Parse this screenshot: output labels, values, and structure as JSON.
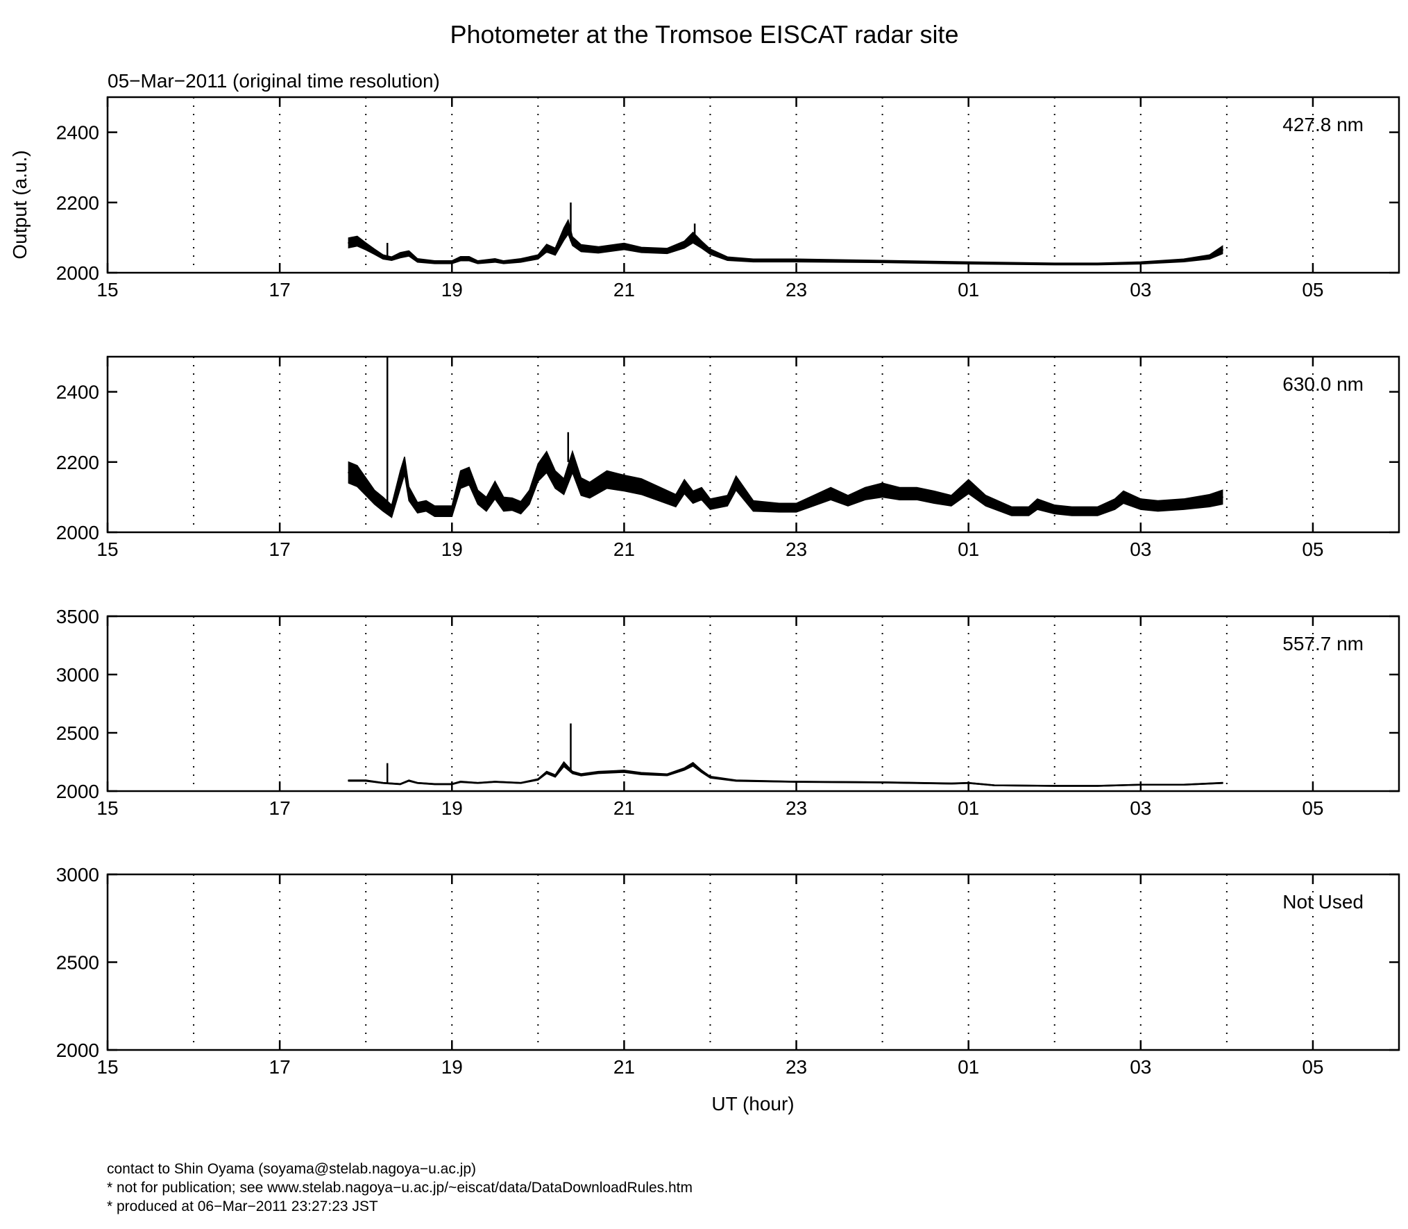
{
  "title": "Photometer at the Tromsoe EISCAT radar site",
  "subtitle": "05−Mar−2011 (original time resolution)",
  "ylabel": "Output (a.u.)",
  "xlabel": "UT (hour)",
  "footer": [
    "contact to Shin Oyama (soyama@stelab.nagoya−u.ac.jp)",
    "* not for publication; see www.stelab.nagoya−u.ac.jp/~eiscat/data/DataDownloadRules.htm",
    "* produced at 06−Mar−2011 23:27:23 JST"
  ],
  "chart_data": [
    {
      "type": "line",
      "label": "427.8 nm",
      "x_ticks": [
        "15",
        "17",
        "19",
        "21",
        "23",
        "01",
        "03",
        "05"
      ],
      "xlim": [
        15,
        30
      ],
      "ylim": [
        2000,
        2500
      ],
      "y_ticks": [
        2000,
        2200,
        2400
      ],
      "grid": "dotted vertical every hour",
      "x": [
        17.8,
        17.9,
        18.0,
        18.1,
        18.2,
        18.3,
        18.4,
        18.5,
        18.6,
        18.8,
        19.0,
        19.1,
        19.2,
        19.3,
        19.5,
        19.6,
        19.8,
        20.0,
        20.1,
        20.2,
        20.3,
        20.35,
        20.4,
        20.5,
        20.7,
        21.0,
        21.2,
        21.5,
        21.7,
        21.8,
        21.9,
        22.0,
        22.2,
        22.5,
        23.0,
        24.0,
        25.0,
        26.0,
        26.5,
        27.0,
        27.5,
        27.8,
        27.95
      ],
      "y": [
        2085,
        2090,
        2075,
        2060,
        2045,
        2040,
        2050,
        2055,
        2035,
        2030,
        2030,
        2040,
        2040,
        2030,
        2035,
        2030,
        2035,
        2045,
        2070,
        2060,
        2110,
        2130,
        2090,
        2070,
        2065,
        2075,
        2065,
        2062,
        2080,
        2100,
        2080,
        2060,
        2040,
        2035,
        2035,
        2032,
        2028,
        2025,
        2025,
        2028,
        2035,
        2045,
        2065
      ],
      "band": [
        28,
        28,
        20,
        15,
        12,
        10,
        15,
        15,
        10,
        8,
        8,
        12,
        12,
        8,
        10,
        8,
        10,
        12,
        22,
        20,
        35,
        40,
        25,
        20,
        18,
        18,
        15,
        15,
        20,
        30,
        20,
        15,
        10,
        8,
        8,
        6,
        6,
        5,
        5,
        6,
        8,
        12,
        22
      ],
      "spikes": [
        {
          "x": 18.25,
          "y": 2085
        },
        {
          "x": 20.38,
          "y": 2200
        },
        {
          "x": 21.82,
          "y": 2140
        }
      ]
    },
    {
      "type": "line",
      "label": "630.0 nm",
      "x_ticks": [
        "15",
        "17",
        "19",
        "21",
        "23",
        "01",
        "03",
        "05"
      ],
      "xlim": [
        15,
        30
      ],
      "ylim": [
        2000,
        2500
      ],
      "y_ticks": [
        2000,
        2200,
        2400
      ],
      "grid": "dotted vertical every hour",
      "x": [
        17.8,
        17.9,
        18.0,
        18.1,
        18.2,
        18.3,
        18.4,
        18.45,
        18.5,
        18.6,
        18.7,
        18.8,
        19.0,
        19.1,
        19.2,
        19.3,
        19.4,
        19.5,
        19.6,
        19.7,
        19.8,
        19.9,
        20.0,
        20.1,
        20.2,
        20.3,
        20.4,
        20.5,
        20.6,
        20.8,
        21.0,
        21.2,
        21.4,
        21.6,
        21.7,
        21.8,
        21.9,
        22.0,
        22.2,
        22.3,
        22.5,
        22.8,
        23.0,
        23.2,
        23.4,
        23.6,
        23.8,
        24.0,
        24.2,
        24.4,
        24.6,
        24.8,
        25.0,
        25.2,
        25.5,
        25.7,
        25.8,
        26.0,
        26.2,
        26.5,
        26.7,
        26.8,
        27.0,
        27.2,
        27.5,
        27.8,
        27.95
      ],
      "y": [
        2170,
        2160,
        2130,
        2100,
        2080,
        2060,
        2150,
        2190,
        2110,
        2070,
        2075,
        2060,
        2060,
        2150,
        2160,
        2100,
        2080,
        2120,
        2080,
        2080,
        2070,
        2100,
        2170,
        2200,
        2150,
        2130,
        2200,
        2130,
        2120,
        2150,
        2140,
        2130,
        2110,
        2090,
        2130,
        2100,
        2110,
        2080,
        2090,
        2140,
        2075,
        2070,
        2070,
        2090,
        2110,
        2090,
        2110,
        2120,
        2110,
        2110,
        2100,
        2090,
        2130,
        2090,
        2060,
        2060,
        2080,
        2065,
        2060,
        2060,
        2080,
        2100,
        2080,
        2075,
        2080,
        2090,
        2100
      ],
      "band": [
        60,
        60,
        50,
        40,
        40,
        35,
        50,
        50,
        40,
        30,
        30,
        30,
        30,
        50,
        50,
        40,
        40,
        50,
        40,
        35,
        35,
        40,
        50,
        60,
        50,
        45,
        60,
        50,
        45,
        50,
        45,
        45,
        40,
        35,
        40,
        35,
        35,
        30,
        30,
        40,
        30,
        25,
        25,
        30,
        35,
        30,
        35,
        40,
        35,
        35,
        35,
        30,
        40,
        30,
        25,
        25,
        30,
        25,
        25,
        25,
        30,
        35,
        30,
        30,
        30,
        35,
        40
      ],
      "spikes": [
        {
          "x": 18.25,
          "y": 2500
        },
        {
          "x": 20.35,
          "y": 2285
        }
      ]
    },
    {
      "type": "line",
      "label": "557.7 nm",
      "x_ticks": [
        "15",
        "17",
        "19",
        "21",
        "23",
        "01",
        "03",
        "05"
      ],
      "xlim": [
        15,
        30
      ],
      "ylim": [
        2000,
        3500
      ],
      "y_ticks": [
        2000,
        2500,
        3000,
        3500
      ],
      "grid": "dotted vertical every hour",
      "x": [
        17.8,
        18.0,
        18.2,
        18.4,
        18.5,
        18.6,
        18.8,
        19.0,
        19.1,
        19.3,
        19.5,
        19.8,
        20.0,
        20.1,
        20.2,
        20.3,
        20.4,
        20.5,
        20.7,
        21.0,
        21.2,
        21.5,
        21.7,
        21.8,
        21.9,
        22.0,
        22.3,
        23.0,
        24.0,
        24.8,
        25.0,
        25.3,
        26.0,
        26.5,
        27.0,
        27.5,
        27.95
      ],
      "y": [
        2090,
        2090,
        2070,
        2060,
        2090,
        2070,
        2060,
        2060,
        2080,
        2070,
        2080,
        2070,
        2100,
        2160,
        2130,
        2230,
        2160,
        2140,
        2160,
        2170,
        2150,
        2140,
        2190,
        2230,
        2170,
        2120,
        2090,
        2080,
        2075,
        2065,
        2070,
        2050,
        2045,
        2045,
        2055,
        2055,
        2070
      ],
      "band": [
        10,
        10,
        8,
        8,
        10,
        8,
        8,
        8,
        10,
        8,
        8,
        8,
        12,
        20,
        20,
        40,
        20,
        18,
        18,
        18,
        18,
        15,
        20,
        30,
        20,
        15,
        10,
        8,
        8,
        8,
        8,
        6,
        6,
        6,
        6,
        6,
        8
      ],
      "spikes": [
        {
          "x": 18.25,
          "y": 2240
        },
        {
          "x": 20.38,
          "y": 2580
        }
      ]
    },
    {
      "type": "line",
      "label": "Not Used",
      "x_ticks": [
        "15",
        "17",
        "19",
        "21",
        "23",
        "01",
        "03",
        "05"
      ],
      "xlim": [
        15,
        30
      ],
      "ylim": [
        2000,
        3000
      ],
      "y_ticks": [
        2000,
        2500,
        3000
      ],
      "grid": "dotted vertical every hour",
      "x": [],
      "y": [],
      "band": [],
      "spikes": []
    }
  ]
}
